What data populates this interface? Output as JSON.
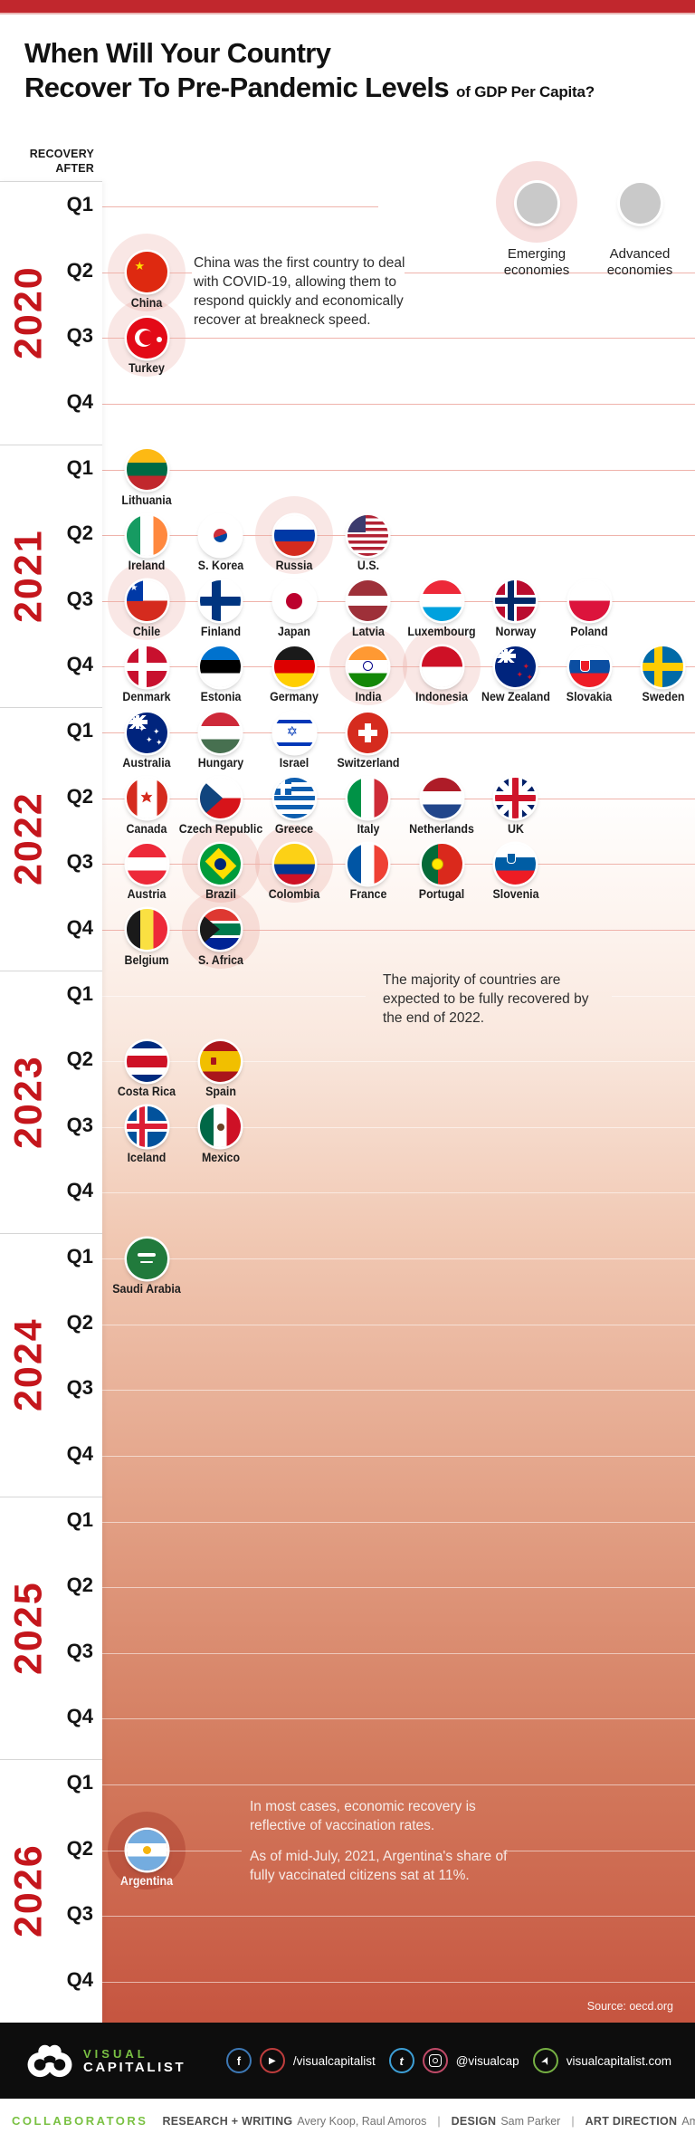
{
  "colors": {
    "top_bar": "#c1272d",
    "year_label": "#c4161c",
    "gridline_red": "#efb3ab",
    "halo_pink": "#f7dedd",
    "gradient_end": "#c65540",
    "brand_green": "#7ac143"
  },
  "header": {
    "title_line1": "When Will Your Country",
    "title_line2": "Recover To Pre-Pandemic Levels",
    "title_suffix": "of GDP Per Capita?",
    "axis_label_line1": "RECOVERY",
    "axis_label_line2": "AFTER"
  },
  "legend": {
    "emerging_label": "Emerging economies",
    "advanced_label": "Advanced economies"
  },
  "annotations": {
    "china": "China was the first country to deal with COVID-19, allowing them to respond quickly and economically recover at breakneck speed.",
    "majority": "The majority of countries are expected to be fully recovered by the end of 2022.",
    "argentina_p1": "In most cases, economic recovery is reflective of vaccination rates.",
    "argentina_p2": "As of mid-July, 2021, Argentina's share of fully vaccinated citizens sat at 11%."
  },
  "source": "Source: oecd.org",
  "footer": {
    "logo_line1": "VISUAL",
    "logo_line2": "CAPITALIST",
    "handle_fb_yt": "/visualcapitalist",
    "handle_tw_ig": "@visualcap",
    "handle_web": "visualcapitalist.com"
  },
  "collaborators": {
    "label": "COLLABORATORS",
    "items": [
      {
        "role": "RESEARCH + WRITING",
        "names": "Avery Koop, Raul Amoros"
      },
      {
        "role": "DESIGN",
        "names": "Sam Parker"
      },
      {
        "role": "ART DIRECTION",
        "names": "Amy Kuo"
      }
    ]
  },
  "chart_data": {
    "type": "timeline",
    "title": "When Will Your Country Recover To Pre-Pandemic Levels of GDP Per Capita?",
    "y_axis": "Recovery after (year and quarter)",
    "years": [
      "2020",
      "2021",
      "2022",
      "2023",
      "2024",
      "2025",
      "2026"
    ],
    "quarters": [
      "Q1",
      "Q2",
      "Q3",
      "Q4"
    ],
    "legend_entries": [
      "Emerging economies",
      "Advanced economies"
    ],
    "entries": [
      {
        "country": "China",
        "flag": "cn",
        "year": "2020",
        "quarter": "Q2",
        "col": 0,
        "emerging": true
      },
      {
        "country": "Turkey",
        "flag": "tr",
        "year": "2020",
        "quarter": "Q3",
        "col": 0,
        "emerging": true
      },
      {
        "country": "Lithuania",
        "flag": "lt",
        "year": "2021",
        "quarter": "Q1",
        "col": 0,
        "emerging": false
      },
      {
        "country": "Ireland",
        "flag": "ie",
        "year": "2021",
        "quarter": "Q2",
        "col": 0,
        "emerging": false
      },
      {
        "country": "S. Korea",
        "flag": "kr",
        "year": "2021",
        "quarter": "Q2",
        "col": 1,
        "emerging": false
      },
      {
        "country": "Russia",
        "flag": "ru",
        "year": "2021",
        "quarter": "Q2",
        "col": 2,
        "emerging": true
      },
      {
        "country": "U.S.",
        "flag": "us",
        "year": "2021",
        "quarter": "Q2",
        "col": 3,
        "emerging": false
      },
      {
        "country": "Chile",
        "flag": "cl",
        "year": "2021",
        "quarter": "Q3",
        "col": 0,
        "emerging": true
      },
      {
        "country": "Finland",
        "flag": "fi",
        "year": "2021",
        "quarter": "Q3",
        "col": 1,
        "emerging": false
      },
      {
        "country": "Japan",
        "flag": "jp",
        "year": "2021",
        "quarter": "Q3",
        "col": 2,
        "emerging": false
      },
      {
        "country": "Latvia",
        "flag": "lv",
        "year": "2021",
        "quarter": "Q3",
        "col": 3,
        "emerging": false
      },
      {
        "country": "Luxembourg",
        "flag": "lu",
        "year": "2021",
        "quarter": "Q3",
        "col": 4,
        "emerging": false
      },
      {
        "country": "Norway",
        "flag": "no",
        "year": "2021",
        "quarter": "Q3",
        "col": 5,
        "emerging": false
      },
      {
        "country": "Poland",
        "flag": "pl",
        "year": "2021",
        "quarter": "Q3",
        "col": 6,
        "emerging": false
      },
      {
        "country": "Denmark",
        "flag": "dk",
        "year": "2021",
        "quarter": "Q4",
        "col": 0,
        "emerging": false
      },
      {
        "country": "Estonia",
        "flag": "ee",
        "year": "2021",
        "quarter": "Q4",
        "col": 1,
        "emerging": false
      },
      {
        "country": "Germany",
        "flag": "de",
        "year": "2021",
        "quarter": "Q4",
        "col": 2,
        "emerging": false
      },
      {
        "country": "India",
        "flag": "in",
        "year": "2021",
        "quarter": "Q4",
        "col": 3,
        "emerging": true
      },
      {
        "country": "Indonesia",
        "flag": "id",
        "year": "2021",
        "quarter": "Q4",
        "col": 4,
        "emerging": true
      },
      {
        "country": "New Zealand",
        "flag": "nz",
        "year": "2021",
        "quarter": "Q4",
        "col": 5,
        "emerging": false
      },
      {
        "country": "Slovakia",
        "flag": "sk",
        "year": "2021",
        "quarter": "Q4",
        "col": 6,
        "emerging": false
      },
      {
        "country": "Sweden",
        "flag": "se",
        "year": "2021",
        "quarter": "Q4",
        "col": 7,
        "emerging": false
      },
      {
        "country": "Australia",
        "flag": "au",
        "year": "2022",
        "quarter": "Q1",
        "col": 0,
        "emerging": false
      },
      {
        "country": "Hungary",
        "flag": "hu",
        "year": "2022",
        "quarter": "Q1",
        "col": 1,
        "emerging": false
      },
      {
        "country": "Israel",
        "flag": "il",
        "year": "2022",
        "quarter": "Q1",
        "col": 2,
        "emerging": false
      },
      {
        "country": "Switzerland",
        "flag": "ch",
        "year": "2022",
        "quarter": "Q1",
        "col": 3,
        "emerging": false
      },
      {
        "country": "Canada",
        "flag": "ca",
        "year": "2022",
        "quarter": "Q2",
        "col": 0,
        "emerging": false
      },
      {
        "country": "Czech Republic",
        "flag": "cz",
        "year": "2022",
        "quarter": "Q2",
        "col": 1,
        "emerging": false
      },
      {
        "country": "Greece",
        "flag": "gr",
        "year": "2022",
        "quarter": "Q2",
        "col": 2,
        "emerging": false
      },
      {
        "country": "Italy",
        "flag": "it",
        "year": "2022",
        "quarter": "Q2",
        "col": 3,
        "emerging": false
      },
      {
        "country": "Netherlands",
        "flag": "nl",
        "year": "2022",
        "quarter": "Q2",
        "col": 4,
        "emerging": false
      },
      {
        "country": "UK",
        "flag": "gb",
        "year": "2022",
        "quarter": "Q2",
        "col": 5,
        "emerging": false
      },
      {
        "country": "Austria",
        "flag": "at",
        "year": "2022",
        "quarter": "Q3",
        "col": 0,
        "emerging": false
      },
      {
        "country": "Brazil",
        "flag": "br",
        "year": "2022",
        "quarter": "Q3",
        "col": 1,
        "emerging": true
      },
      {
        "country": "Colombia",
        "flag": "co",
        "year": "2022",
        "quarter": "Q3",
        "col": 2,
        "emerging": true
      },
      {
        "country": "France",
        "flag": "fr",
        "year": "2022",
        "quarter": "Q3",
        "col": 3,
        "emerging": false
      },
      {
        "country": "Portugal",
        "flag": "pt",
        "year": "2022",
        "quarter": "Q3",
        "col": 4,
        "emerging": false
      },
      {
        "country": "Slovenia",
        "flag": "si",
        "year": "2022",
        "quarter": "Q3",
        "col": 5,
        "emerging": false
      },
      {
        "country": "Belgium",
        "flag": "be",
        "year": "2022",
        "quarter": "Q4",
        "col": 0,
        "emerging": false
      },
      {
        "country": "S. Africa",
        "flag": "za",
        "year": "2022",
        "quarter": "Q4",
        "col": 1,
        "emerging": true
      },
      {
        "country": "Costa Rica",
        "flag": "cr",
        "year": "2023",
        "quarter": "Q2",
        "col": 0,
        "emerging": false
      },
      {
        "country": "Spain",
        "flag": "es",
        "year": "2023",
        "quarter": "Q2",
        "col": 1,
        "emerging": false
      },
      {
        "country": "Iceland",
        "flag": "is",
        "year": "2023",
        "quarter": "Q3",
        "col": 0,
        "emerging": false
      },
      {
        "country": "Mexico",
        "flag": "mx",
        "year": "2023",
        "quarter": "Q3",
        "col": 1,
        "emerging": false
      },
      {
        "country": "Saudi Arabia",
        "flag": "sa",
        "year": "2024",
        "quarter": "Q1",
        "col": 0,
        "emerging": false
      },
      {
        "country": "Argentina",
        "flag": "ar",
        "year": "2026",
        "quarter": "Q2",
        "col": 0,
        "emerging": true,
        "halo": "dark",
        "label_light": true
      }
    ]
  }
}
